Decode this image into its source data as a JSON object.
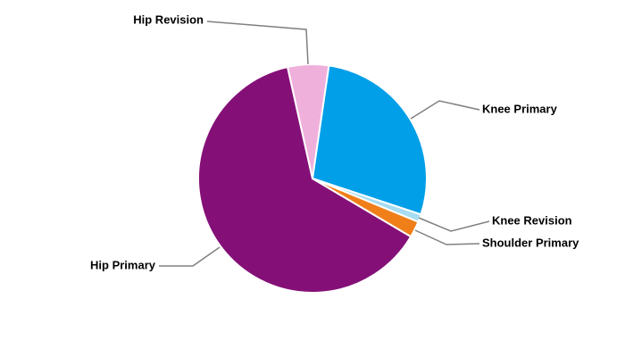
{
  "chart_data": {
    "type": "pie",
    "categories": [
      "Hip Primary",
      "Hip Revision",
      "Knee Primary",
      "Knee Revision",
      "Shoulder Primary"
    ],
    "values": [
      63,
      5.8,
      27.8,
      1.1,
      2.3
    ],
    "colors": [
      "#841077",
      "#f0b0dc",
      "#009fe8",
      "#a8dcf0",
      "#f07f1a"
    ]
  }
}
